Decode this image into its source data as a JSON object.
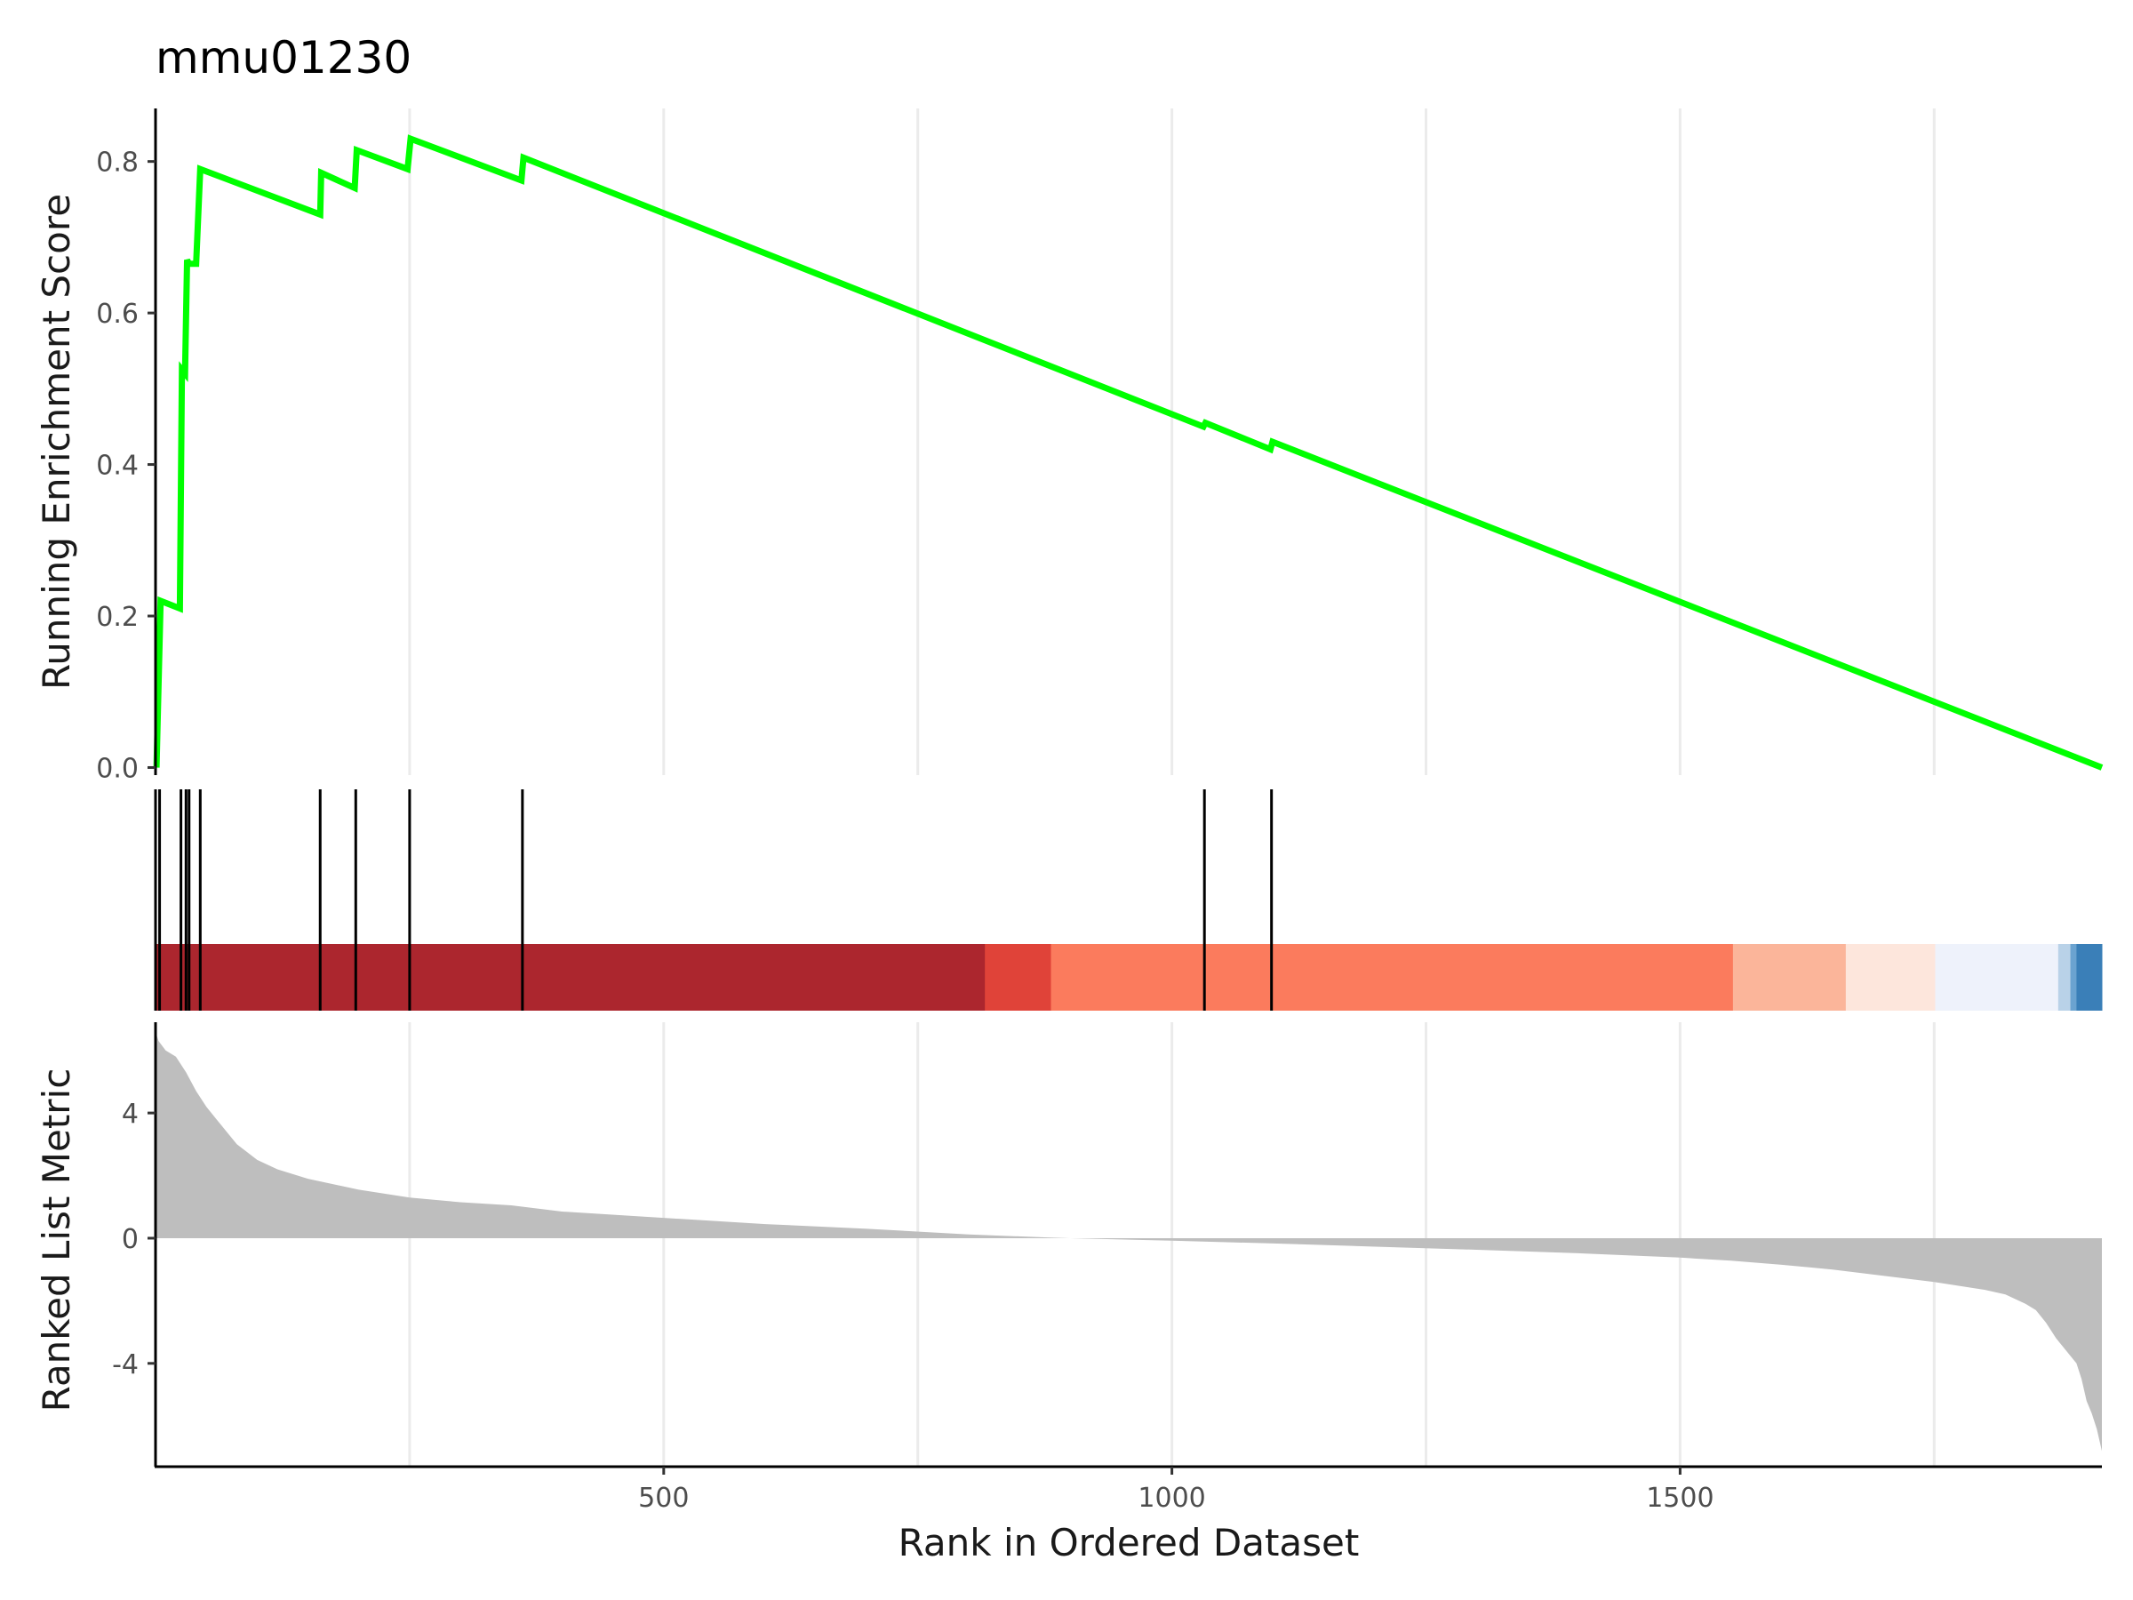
{
  "chart_data": {
    "type": "line",
    "title": "mmu01230",
    "xlabel": "Rank in Ordered Dataset",
    "x_ticks": [
      500,
      1000,
      1500
    ],
    "xlim": [
      0,
      1915
    ],
    "grid": "vertical-only",
    "legend": "none",
    "line_color": "#00ff00",
    "gene_hit_positions": [
      4,
      25,
      30,
      33,
      44,
      162,
      197,
      250,
      361,
      1032,
      1098
    ],
    "panels": [
      {
        "name": "enrichment",
        "ylabel": "Running Enrichment Score",
        "ylim": [
          -0.01,
          0.87
        ],
        "y_ticks": [
          "0.0",
          "0.2",
          "0.4",
          "0.6",
          "0.8"
        ],
        "series": [
          {
            "x": [
              1,
              5,
              24,
              26,
              29,
              31,
              33,
              40,
              44,
              162,
              163,
              196,
              198,
              248,
              251,
              360,
              362,
              1031,
              1033,
              1097,
              1099,
              1915
            ],
            "y": [
              0.0,
              0.22,
              0.21,
              0.525,
              0.52,
              0.67,
              0.665,
              0.665,
              0.79,
              0.73,
              0.785,
              0.765,
              0.815,
              0.79,
              0.83,
              0.775,
              0.805,
              0.45,
              0.455,
              0.42,
              0.43,
              0.0
            ]
          }
        ]
      },
      {
        "name": "gene-hits",
        "ylabel": "",
        "heat_segments": [
          {
            "start": 0,
            "end": 816,
            "color": "#ac262e"
          },
          {
            "start": 816,
            "end": 881,
            "color": "#e04339"
          },
          {
            "start": 881,
            "end": 1552,
            "color": "#fb7b5d"
          },
          {
            "start": 1552,
            "end": 1663,
            "color": "#fbb59a"
          },
          {
            "start": 1663,
            "end": 1751,
            "color": "#fde6dc"
          },
          {
            "start": 1751,
            "end": 1872,
            "color": "#eef2fb"
          },
          {
            "start": 1872,
            "end": 1884,
            "color": "#b9d2e8"
          },
          {
            "start": 1884,
            "end": 1890,
            "color": "#6ba3d0"
          },
          {
            "start": 1890,
            "end": 1915,
            "color": "#3a7fb8"
          }
        ]
      },
      {
        "name": "ranked-metric",
        "ylabel": "Ranked List Metric",
        "ylim": [
          -7.3,
          6.9
        ],
        "y_ticks": [
          "-4",
          "0",
          "4"
        ],
        "y_tick_values": [
          -4,
          0,
          4
        ],
        "fill_color": "#bebebe",
        "metric_profile": {
          "x": [
            0,
            3,
            10,
            20,
            30,
            40,
            50,
            60,
            80,
            100,
            120,
            150,
            200,
            250,
            300,
            350,
            400,
            500,
            600,
            700,
            800,
            880,
            900,
            1000,
            1100,
            1200,
            1300,
            1400,
            1500,
            1550,
            1600,
            1650,
            1700,
            1750,
            1800,
            1820,
            1840,
            1850,
            1860,
            1870,
            1880,
            1890,
            1895,
            1900,
            1905,
            1910,
            1915
          ],
          "y": [
            6.6,
            6.3,
            6.0,
            5.8,
            5.3,
            4.7,
            4.2,
            3.8,
            3.0,
            2.5,
            2.2,
            1.9,
            1.55,
            1.3,
            1.15,
            1.05,
            0.85,
            0.65,
            0.45,
            0.3,
            0.12,
            0.02,
            0.0,
            -0.08,
            -0.17,
            -0.27,
            -0.37,
            -0.48,
            -0.62,
            -0.72,
            -0.85,
            -1.0,
            -1.2,
            -1.4,
            -1.65,
            -1.8,
            -2.1,
            -2.3,
            -2.7,
            -3.2,
            -3.6,
            -4.0,
            -4.5,
            -5.2,
            -5.6,
            -6.1,
            -6.8
          ]
        }
      }
    ]
  }
}
